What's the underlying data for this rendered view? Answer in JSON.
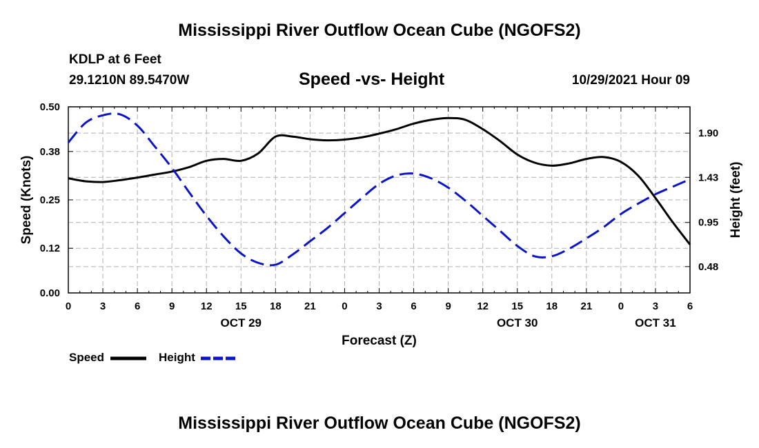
{
  "titles": {
    "main": "Mississippi River Outflow Ocean Cube (NGOFS2)",
    "station": "KDLP at 6 Feet",
    "coords": "29.1210N  89.5470W",
    "subtitle": "Speed -vs- Height",
    "datetime": "10/29/2021 Hour 09",
    "bottom": "Mississippi River Outflow Ocean Cube (NGOFS2)"
  },
  "legend": {
    "speed": "Speed",
    "height": "Height"
  },
  "colors": {
    "speed": "#000000",
    "height": "#0a14c8",
    "grid": "#b0b0b0"
  },
  "chart_data": {
    "type": "line",
    "xlabel": "Forecast (Z)",
    "ylabel_left": "Speed (Knots)",
    "ylabel_right": "Height (feet)",
    "x_hours": [
      0,
      3,
      6,
      9,
      12,
      15,
      18,
      21,
      24,
      27,
      30,
      33,
      36,
      39,
      42,
      45,
      48,
      51,
      54
    ],
    "x_tick_labels": [
      "0",
      "3",
      "6",
      "9",
      "12",
      "15",
      "18",
      "21",
      "0",
      "3",
      "6",
      "9",
      "12",
      "15",
      "18",
      "21",
      "0",
      "3",
      "6"
    ],
    "date_labels": [
      {
        "hour": 15,
        "label": "OCT 29"
      },
      {
        "hour": 39,
        "label": "OCT 30"
      },
      {
        "hour": 51,
        "label": "OCT 31"
      }
    ],
    "left_axis": {
      "min": 0.0,
      "max": 0.5,
      "ticks": [
        0.0,
        0.12,
        0.25,
        0.38,
        0.5
      ],
      "tick_labels": [
        "0.00",
        "0.12",
        "0.25",
        "0.38",
        "0.50"
      ]
    },
    "right_axis": {
      "min": 0.2,
      "max": 2.18,
      "ticks": [
        0.48,
        0.95,
        1.43,
        1.9
      ],
      "tick_labels": [
        "0.48",
        "0.95",
        "1.43",
        "1.90"
      ]
    },
    "series": [
      {
        "name": "Speed",
        "axis": "left",
        "style": "solid",
        "x": [
          0,
          1.5,
          3,
          4.5,
          6,
          7.5,
          9,
          10.5,
          12,
          13.5,
          15,
          16.5,
          18,
          19.5,
          21,
          22.5,
          24,
          25.5,
          27,
          28.5,
          30,
          31.5,
          33,
          34.5,
          36,
          37.5,
          39,
          40.5,
          42,
          43.5,
          45,
          46.5,
          48,
          49.5,
          51,
          52.5,
          54
        ],
        "values": [
          0.308,
          0.3,
          0.298,
          0.303,
          0.31,
          0.318,
          0.326,
          0.338,
          0.355,
          0.36,
          0.355,
          0.375,
          0.42,
          0.42,
          0.413,
          0.41,
          0.412,
          0.418,
          0.428,
          0.44,
          0.455,
          0.465,
          0.47,
          0.465,
          0.44,
          0.408,
          0.372,
          0.35,
          0.342,
          0.348,
          0.36,
          0.365,
          0.352,
          0.315,
          0.255,
          0.19,
          0.13
        ]
      },
      {
        "name": "Height",
        "axis": "right",
        "style": "dashed",
        "x": [
          0,
          1.5,
          3,
          4.5,
          6,
          7.5,
          9,
          10.5,
          12,
          13.5,
          15,
          16.5,
          18,
          19.5,
          21,
          22.5,
          24,
          25.5,
          27,
          28.5,
          30,
          31.5,
          33,
          34.5,
          36,
          37.5,
          39,
          40.5,
          42,
          43.5,
          45,
          46.5,
          48,
          49.5,
          51,
          52.5,
          54
        ],
        "values": [
          1.8,
          2.01,
          2.09,
          2.1,
          1.98,
          1.76,
          1.53,
          1.27,
          1.02,
          0.8,
          0.62,
          0.52,
          0.5,
          0.61,
          0.75,
          0.89,
          1.05,
          1.21,
          1.36,
          1.45,
          1.47,
          1.42,
          1.32,
          1.18,
          1.02,
          0.86,
          0.7,
          0.59,
          0.59,
          0.67,
          0.78,
          0.9,
          1.04,
          1.15,
          1.25,
          1.33,
          1.41
        ]
      }
    ]
  }
}
